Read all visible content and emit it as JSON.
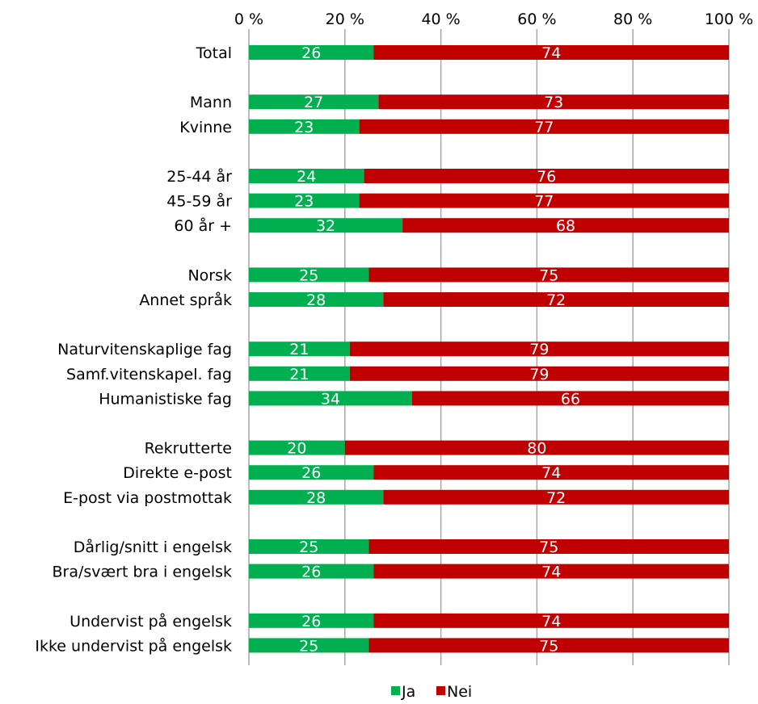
{
  "chart_data": {
    "type": "bar",
    "orientation": "horizontal",
    "stacked": true,
    "percent_scale": true,
    "xlim": [
      0,
      100
    ],
    "x_ticks": [
      "0 %",
      "20 %",
      "40 %",
      "60 %",
      "80 %",
      "100 %"
    ],
    "x_tick_position": "top",
    "grid": true,
    "legend_position": "bottom",
    "categories": [
      "Total",
      "",
      "Mann",
      "Kvinne",
      "",
      "25-44 år",
      "45-59 år",
      "60 år +",
      "",
      "Norsk",
      "Annet språk",
      "",
      "Naturvitenskaplige fag",
      "Samf.vitenskapel. fag",
      "Humanistiske fag",
      "",
      "Rekrutterte",
      "Direkte e-post",
      "E-post via postmottak",
      "",
      "Dårlig/snitt i engelsk",
      "Bra/svært bra i engelsk",
      "",
      "Undervist på engelsk",
      "Ikke undervist på engelsk"
    ],
    "series": [
      {
        "name": "Ja",
        "color": "#00b050",
        "values": [
          26,
          null,
          27,
          23,
          null,
          24,
          23,
          32,
          null,
          25,
          28,
          null,
          21,
          21,
          34,
          null,
          20,
          26,
          28,
          null,
          25,
          26,
          null,
          26,
          25
        ]
      },
      {
        "name": "Nei",
        "color": "#c00000",
        "values": [
          74,
          null,
          73,
          77,
          null,
          76,
          77,
          68,
          null,
          75,
          72,
          null,
          79,
          79,
          66,
          null,
          80,
          74,
          72,
          null,
          75,
          74,
          null,
          74,
          75
        ]
      }
    ],
    "title": "",
    "xlabel": "",
    "ylabel": ""
  },
  "colors": {
    "grid": "#a6a6a6",
    "axis": "#a6a6a6",
    "bar_text": "#ffffff"
  }
}
